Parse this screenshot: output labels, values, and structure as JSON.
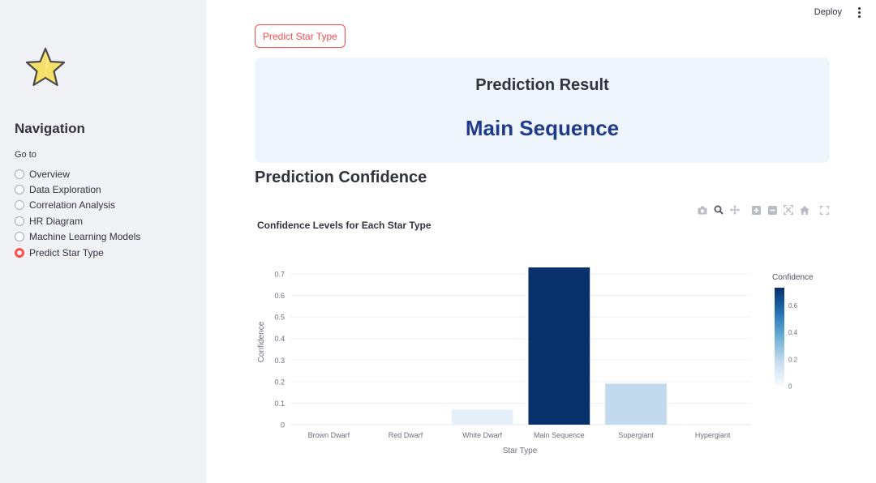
{
  "header": {
    "deploy_label": "Deploy"
  },
  "sidebar": {
    "title": "Navigation",
    "goto_label": "Go to",
    "items": [
      {
        "label": "Overview",
        "selected": false
      },
      {
        "label": "Data Exploration",
        "selected": false
      },
      {
        "label": "Correlation Analysis",
        "selected": false
      },
      {
        "label": "HR Diagram",
        "selected": false
      },
      {
        "label": "Machine Learning Models",
        "selected": false
      },
      {
        "label": "Predict Star Type",
        "selected": true
      }
    ]
  },
  "main": {
    "predict_button": "Predict Star Type",
    "result": {
      "title": "Prediction Result",
      "value": "Main Sequence"
    },
    "confidence_title": "Prediction Confidence"
  },
  "colors": {
    "accent": "#ff4b4b",
    "result_text": "#1f3b8a",
    "result_bg": "#eef5fd",
    "sidebar_bg": "#f0f2f6"
  },
  "chart_data": {
    "type": "bar",
    "title": "Confidence Levels for Each Star Type",
    "xlabel": "Star Type",
    "ylabel": "Confidence",
    "categories": [
      "Brown Dwarf",
      "Red Dwarf",
      "White Dwarf",
      "Main Sequence",
      "Supergiant",
      "Hypergiant"
    ],
    "values": [
      0.0,
      0.0,
      0.07,
      0.73,
      0.19,
      0.005
    ],
    "ylim": [
      0,
      0.73
    ],
    "yticks": [
      "0",
      "0.1",
      "0.2",
      "0.3",
      "0.4",
      "0.5",
      "0.6",
      "0.7"
    ],
    "grid": true,
    "colorbar": {
      "title": "Confidence",
      "ticks": [
        "0",
        "0.2",
        "0.4",
        "0.6"
      ],
      "range": [
        0,
        0.73
      ]
    }
  }
}
